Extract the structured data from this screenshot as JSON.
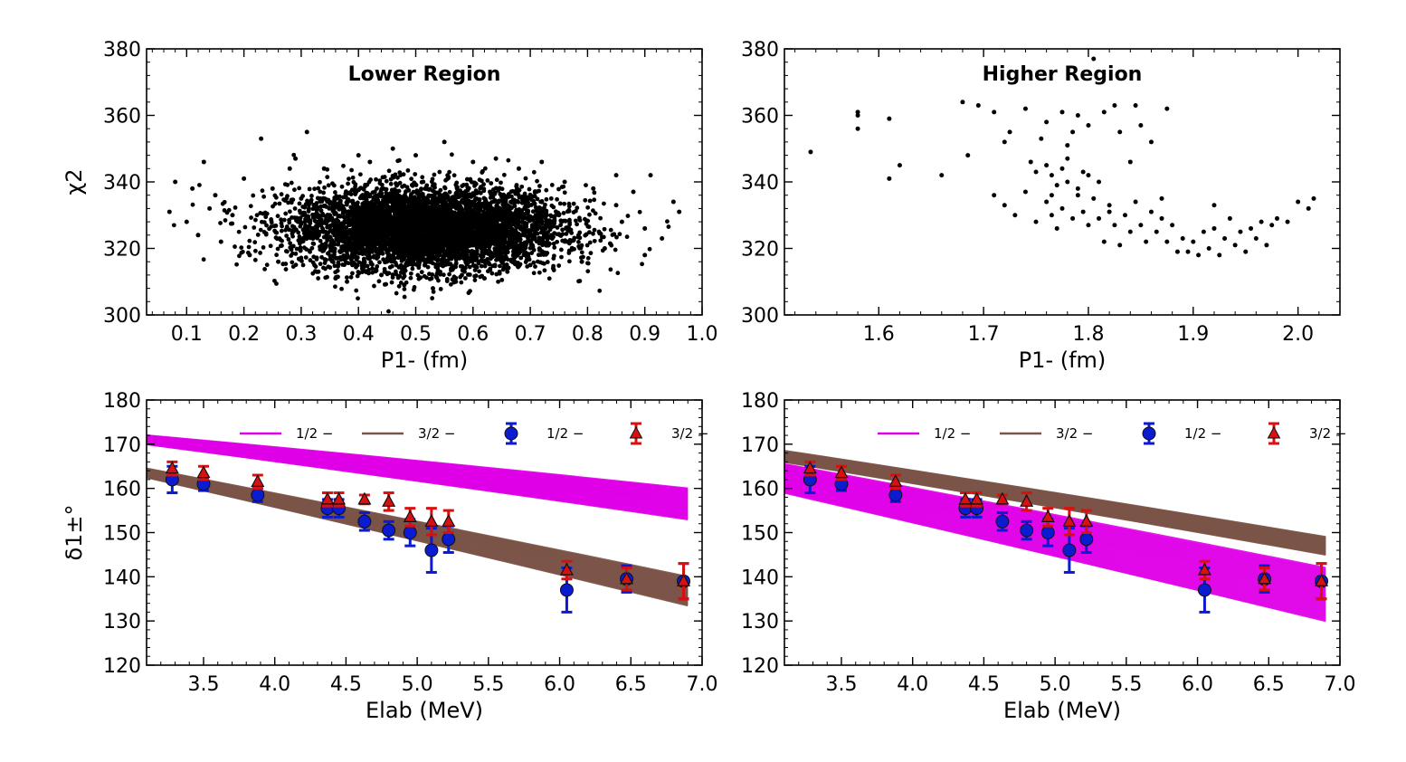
{
  "chart_data": [
    {
      "type": "scatter",
      "title": "Lower Region",
      "xlabel": "P1- (fm)",
      "ylabel": "χ2",
      "xlim": [
        0.03,
        1.0
      ],
      "ylim": [
        300,
        380
      ],
      "xticks": [
        "0.1",
        "0.2",
        "0.3",
        "0.4",
        "0.5",
        "0.6",
        "0.7",
        "0.8",
        "0.9",
        "1.0"
      ],
      "yticks": [
        "300",
        "320",
        "340",
        "360",
        "380"
      ],
      "points": [
        [
          0.07,
          331
        ],
        [
          0.08,
          340
        ],
        [
          0.1,
          328
        ],
        [
          0.11,
          338
        ],
        [
          0.13,
          346
        ],
        [
          0.15,
          336
        ],
        [
          0.16,
          322
        ],
        [
          0.18,
          330
        ],
        [
          0.2,
          341
        ],
        [
          0.21,
          318
        ],
        [
          0.23,
          353
        ],
        [
          0.25,
          338
        ],
        [
          0.26,
          316
        ],
        [
          0.28,
          344
        ],
        [
          0.29,
          347
        ],
        [
          0.31,
          355
        ],
        [
          0.33,
          313
        ],
        [
          0.34,
          344
        ],
        [
          0.36,
          311
        ],
        [
          0.38,
          310
        ],
        [
          0.4,
          348
        ],
        [
          0.42,
          346
        ],
        [
          0.44,
          312
        ],
        [
          0.46,
          350
        ],
        [
          0.48,
          309
        ],
        [
          0.5,
          348
        ],
        [
          0.53,
          308
        ],
        [
          0.55,
          352
        ],
        [
          0.57,
          310
        ],
        [
          0.6,
          346
        ],
        [
          0.62,
          311
        ],
        [
          0.64,
          347
        ],
        [
          0.66,
          313
        ],
        [
          0.68,
          344
        ],
        [
          0.7,
          315
        ],
        [
          0.72,
          346
        ],
        [
          0.74,
          314
        ],
        [
          0.76,
          340
        ],
        [
          0.79,
          316
        ],
        [
          0.81,
          338
        ],
        [
          0.83,
          320
        ],
        [
          0.85,
          342
        ],
        [
          0.86,
          328
        ],
        [
          0.88,
          337
        ],
        [
          0.9,
          326
        ],
        [
          0.91,
          342
        ],
        [
          0.93,
          323
        ],
        [
          0.95,
          334
        ],
        [
          0.96,
          331
        ],
        [
          0.3,
          335
        ],
        [
          0.35,
          330
        ],
        [
          0.45,
          325
        ],
        [
          0.55,
          322
        ],
        [
          0.65,
          326
        ],
        [
          0.75,
          330
        ],
        [
          0.85,
          333
        ],
        [
          0.12,
          324
        ],
        [
          0.14,
          332
        ],
        [
          0.9,
          318
        ],
        [
          0.82,
          325
        ]
      ],
      "dense_cloud": {
        "x_center": 0.52,
        "y_center": 326,
        "x_spread": 0.28,
        "y_spread": 10
      }
    },
    {
      "type": "scatter",
      "title": "Higher Region",
      "xlabel": "P1- (fm)",
      "ylabel": "",
      "xlim": [
        1.51,
        2.04
      ],
      "ylim": [
        300,
        380
      ],
      "xticks": [
        "1.6",
        "1.7",
        "1.8",
        "1.9",
        "2.0"
      ],
      "yticks": [
        "300",
        "320",
        "340",
        "360",
        "380"
      ],
      "points": [
        [
          1.535,
          349
        ],
        [
          1.58,
          356
        ],
        [
          1.58,
          360
        ],
        [
          1.58,
          361
        ],
        [
          1.61,
          359
        ],
        [
          1.61,
          341
        ],
        [
          1.62,
          345
        ],
        [
          1.66,
          342
        ],
        [
          1.68,
          364
        ],
        [
          1.685,
          348
        ],
        [
          1.695,
          363
        ],
        [
          1.71,
          361
        ],
        [
          1.72,
          352
        ],
        [
          1.725,
          355
        ],
        [
          1.74,
          362
        ],
        [
          1.745,
          346
        ],
        [
          1.75,
          343
        ],
        [
          1.755,
          353
        ],
        [
          1.76,
          358
        ],
        [
          1.765,
          342
        ],
        [
          1.77,
          339
        ],
        [
          1.775,
          361
        ],
        [
          1.78,
          347
        ],
        [
          1.785,
          355
        ],
        [
          1.79,
          360
        ],
        [
          1.795,
          343
        ],
        [
          1.8,
          357
        ],
        [
          1.805,
          377
        ],
        [
          1.81,
          340
        ],
        [
          1.815,
          361
        ],
        [
          1.825,
          363
        ],
        [
          1.83,
          355
        ],
        [
          1.84,
          346
        ],
        [
          1.845,
          363
        ],
        [
          1.85,
          357
        ],
        [
          1.86,
          352
        ],
        [
          1.875,
          362
        ],
        [
          1.71,
          336
        ],
        [
          1.72,
          333
        ],
        [
          1.73,
          330
        ],
        [
          1.74,
          337
        ],
        [
          1.75,
          328
        ],
        [
          1.76,
          334
        ],
        [
          1.765,
          330
        ],
        [
          1.77,
          326
        ],
        [
          1.775,
          332
        ],
        [
          1.78,
          340
        ],
        [
          1.785,
          329
        ],
        [
          1.79,
          336
        ],
        [
          1.795,
          331
        ],
        [
          1.8,
          327
        ],
        [
          1.805,
          335
        ],
        [
          1.81,
          329
        ],
        [
          1.815,
          322
        ],
        [
          1.82,
          333
        ],
        [
          1.825,
          327
        ],
        [
          1.83,
          321
        ],
        [
          1.835,
          330
        ],
        [
          1.84,
          325
        ],
        [
          1.845,
          334
        ],
        [
          1.85,
          327
        ],
        [
          1.855,
          322
        ],
        [
          1.86,
          331
        ],
        [
          1.865,
          325
        ],
        [
          1.87,
          329
        ],
        [
          1.875,
          322
        ],
        [
          1.88,
          327
        ],
        [
          1.885,
          319
        ],
        [
          1.89,
          323
        ],
        [
          1.895,
          319
        ],
        [
          1.9,
          322
        ],
        [
          1.905,
          318
        ],
        [
          1.91,
          325
        ],
        [
          1.915,
          320
        ],
        [
          1.92,
          326
        ],
        [
          1.925,
          318
        ],
        [
          1.93,
          323
        ],
        [
          1.935,
          329
        ],
        [
          1.94,
          321
        ],
        [
          1.945,
          325
        ],
        [
          1.95,
          319
        ],
        [
          1.955,
          326
        ],
        [
          1.96,
          323
        ],
        [
          1.965,
          328
        ],
        [
          1.97,
          321
        ],
        [
          1.975,
          327
        ],
        [
          1.98,
          329
        ],
        [
          1.99,
          328
        ],
        [
          2.0,
          334
        ],
        [
          2.01,
          332
        ],
        [
          2.015,
          335
        ],
        [
          1.92,
          333
        ],
        [
          1.76,
          345
        ],
        [
          1.78,
          351
        ],
        [
          1.79,
          338
        ],
        [
          1.8,
          342
        ],
        [
          1.82,
          331
        ],
        [
          1.87,
          335
        ],
        [
          1.765,
          336
        ],
        [
          1.775,
          344
        ]
      ]
    },
    {
      "type": "line",
      "title": "",
      "xlabel": "Elab (MeV)",
      "ylabel": "δ1±°",
      "xlim": [
        3.1,
        7.0
      ],
      "ylim": [
        120,
        180
      ],
      "xticks": [
        "3.5",
        "4.0",
        "4.5",
        "5.0",
        "5.5",
        "6.0",
        "6.5",
        "7.0"
      ],
      "yticks": [
        "120",
        "130",
        "140",
        "150",
        "160",
        "170",
        "180"
      ],
      "legend": [
        "1/2 −",
        "3/2 −",
        "1/2 −",
        "3/2 −"
      ],
      "bands": [
        {
          "name": "1/2 −",
          "color": "#e000e8",
          "x": [
            3.1,
            6.9
          ],
          "upper": [
            172,
            160
          ],
          "lower": [
            170,
            153
          ]
        },
        {
          "name": "3/2 −",
          "color": "#7b5448",
          "x": [
            3.1,
            6.9
          ],
          "upper": [
            164.5,
            140
          ],
          "lower": [
            162.5,
            133.5
          ]
        }
      ],
      "series": [
        {
          "name": "1/2 −",
          "color": "#0b1bd0",
          "x": [
            3.28,
            3.5,
            3.88,
            4.37,
            4.45,
            4.63,
            4.8,
            4.95,
            5.1,
            5.22,
            6.05,
            6.47,
            6.87
          ],
          "values": [
            162,
            161,
            158.5,
            155.5,
            155.5,
            152.5,
            150.5,
            150,
            146,
            148.5,
            137,
            139.5,
            139
          ],
          "errors": [
            3,
            1.5,
            1.5,
            2,
            2,
            2,
            2,
            3,
            5,
            3,
            5,
            3,
            4
          ]
        },
        {
          "name": "3/2 −",
          "color": "#d81010",
          "x": [
            3.28,
            3.5,
            3.88,
            4.37,
            4.45,
            4.63,
            4.8,
            4.95,
            5.1,
            5.22,
            6.05,
            6.47,
            6.87
          ],
          "values": [
            164.5,
            163.5,
            161.5,
            157.5,
            157.5,
            157.5,
            157,
            153.5,
            152.5,
            152.5,
            141.5,
            139.5,
            139
          ],
          "errors": [
            1.5,
            1.5,
            1.5,
            1.5,
            1.5,
            1,
            2,
            2,
            3,
            2.5,
            2,
            2.5,
            4
          ]
        }
      ]
    },
    {
      "type": "line",
      "title": "",
      "xlabel": "Elab (MeV)",
      "ylabel": "",
      "xlim": [
        3.1,
        7.0
      ],
      "ylim": [
        120,
        180
      ],
      "xticks": [
        "3.5",
        "4.0",
        "4.5",
        "5.0",
        "5.5",
        "6.0",
        "6.5",
        "7.0"
      ],
      "yticks": [
        "120",
        "130",
        "140",
        "150",
        "160",
        "170",
        "180"
      ],
      "legend": [
        "1/2 −",
        "3/2 −",
        "1/2 −",
        "3/2 −"
      ],
      "bands": [
        {
          "name": "3/2 −",
          "color": "#7b5448",
          "x": [
            3.1,
            6.9
          ],
          "upper": [
            168.5,
            149
          ],
          "lower": [
            166,
            145
          ]
        },
        {
          "name": "1/2 −",
          "color": "#e000e8",
          "x": [
            3.1,
            6.9
          ],
          "upper": [
            165.5,
            142
          ],
          "lower": [
            159,
            130
          ]
        }
      ],
      "series": [
        {
          "name": "1/2 −",
          "color": "#0b1bd0",
          "x": [
            3.28,
            3.5,
            3.88,
            4.37,
            4.45,
            4.63,
            4.8,
            4.95,
            5.1,
            5.22,
            6.05,
            6.47,
            6.87
          ],
          "values": [
            162,
            161,
            158.5,
            155.5,
            155.5,
            152.5,
            150.5,
            150,
            146,
            148.5,
            137,
            139.5,
            139
          ],
          "errors": [
            3,
            1.5,
            1.5,
            2,
            2,
            2,
            2,
            3,
            5,
            3,
            5,
            3,
            4
          ]
        },
        {
          "name": "3/2 −",
          "color": "#d81010",
          "x": [
            3.28,
            3.5,
            3.88,
            4.37,
            4.45,
            4.63,
            4.8,
            4.95,
            5.1,
            5.22,
            6.05,
            6.47,
            6.87
          ],
          "values": [
            164.5,
            163.5,
            161.5,
            157.5,
            157.5,
            157.5,
            157,
            153.5,
            152.5,
            152.5,
            141.5,
            139.5,
            139
          ],
          "errors": [
            1.5,
            1.5,
            1.5,
            1.5,
            1.5,
            1,
            2,
            2,
            3,
            2.5,
            2,
            2.5,
            4
          ]
        }
      ]
    }
  ]
}
